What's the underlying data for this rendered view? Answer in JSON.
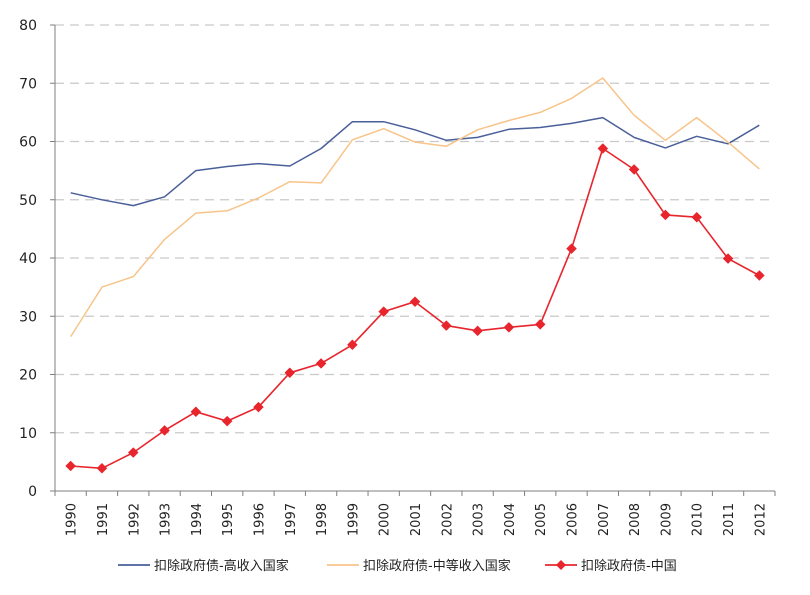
{
  "chart_data": {
    "type": "line",
    "title": "",
    "xlabel": "",
    "ylabel": "",
    "ylim": [
      0,
      80
    ],
    "yticks": [
      "0",
      "10",
      "20",
      "30",
      "40",
      "50",
      "60",
      "70",
      "80"
    ],
    "grid": true,
    "legend_position": "bottom",
    "categories": [
      "1990",
      "1991",
      "1992",
      "1993",
      "1994",
      "1995",
      "1996",
      "1997",
      "1998",
      "1999",
      "2000",
      "2001",
      "2002",
      "2003",
      "2004",
      "2005",
      "2006",
      "2007",
      "2008",
      "2009",
      "2010",
      "2011",
      "2012"
    ],
    "series": [
      {
        "name": "扣除政府债-高收入国家",
        "color": "#4a5f9a",
        "marker": "none",
        "values": [
          51.2,
          50.0,
          49.0,
          50.5,
          55.0,
          55.7,
          56.2,
          55.8,
          58.8,
          63.4,
          63.4,
          62.0,
          60.2,
          60.7,
          62.1,
          62.4,
          63.1,
          64.1,
          60.7,
          58.9,
          60.9,
          59.6,
          62.8
        ]
      },
      {
        "name": "扣除政府债-中等收入国家",
        "color": "#f7c48a",
        "marker": "none",
        "values": [
          26.5,
          35.0,
          36.8,
          43.2,
          47.7,
          48.1,
          50.3,
          53.1,
          52.9,
          60.3,
          62.2,
          59.9,
          59.2,
          62.0,
          63.6,
          65.0,
          67.4,
          70.9,
          64.5,
          60.2,
          64.1,
          59.9,
          55.3
        ]
      },
      {
        "name": "扣除政府债-中国",
        "color": "#e8242c",
        "marker": "diamond",
        "values": [
          4.3,
          3.9,
          6.6,
          10.4,
          13.6,
          12.0,
          14.4,
          20.3,
          21.9,
          25.1,
          30.8,
          32.5,
          28.4,
          27.5,
          28.1,
          28.6,
          41.6,
          58.8,
          55.2,
          47.4,
          47.0,
          39.9,
          37.0
        ]
      }
    ]
  }
}
